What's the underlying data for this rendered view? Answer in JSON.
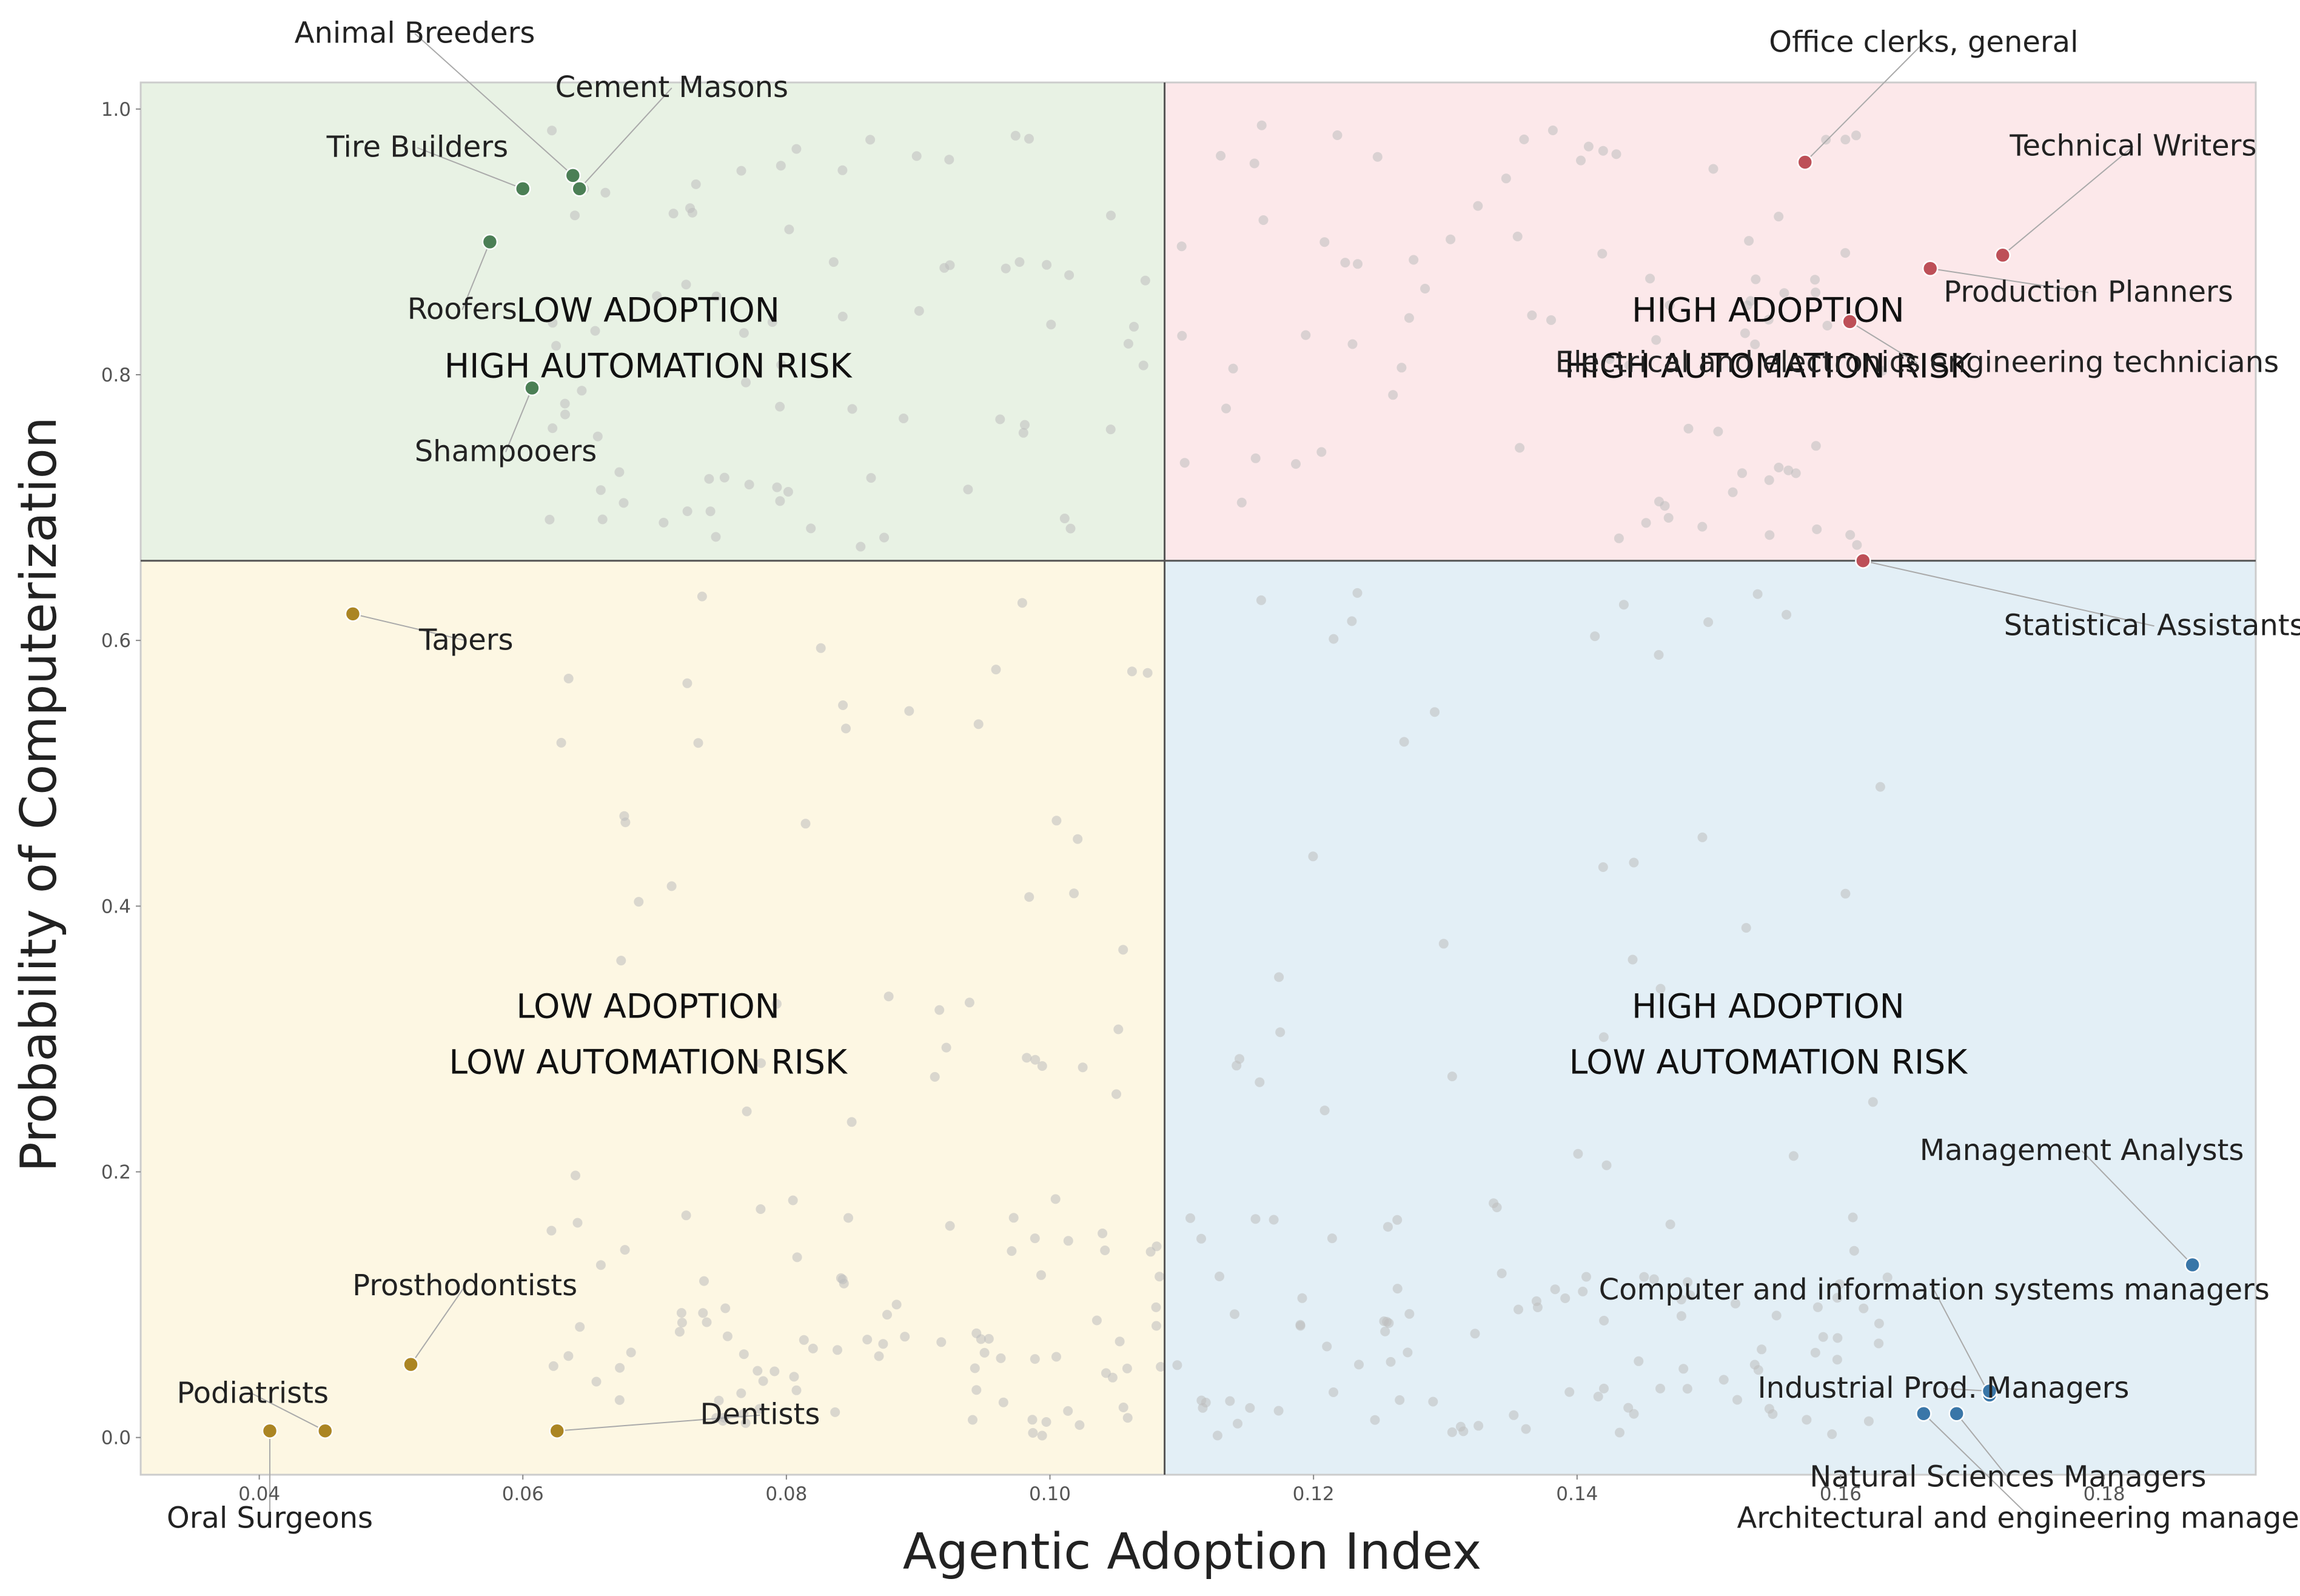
{
  "chart_data": {
    "type": "scatter",
    "xlabel": "Agentic Adoption Index",
    "ylabel": "Probability of Computerization",
    "xlim": [
      0.031,
      0.1915
    ],
    "ylim": [
      -0.028,
      1.02
    ],
    "x_ticks": [
      {
        "value": 0.04,
        "label": "0.04"
      },
      {
        "value": 0.06,
        "label": "0.06"
      },
      {
        "value": 0.08,
        "label": "0.08"
      },
      {
        "value": 0.1,
        "label": "0.10"
      },
      {
        "value": 0.12,
        "label": "0.12"
      },
      {
        "value": 0.14,
        "label": "0.14"
      },
      {
        "value": 0.16,
        "label": "0.16"
      },
      {
        "value": 0.18,
        "label": "0.18"
      }
    ],
    "y_ticks": [
      {
        "value": 0.0,
        "label": "0.0"
      },
      {
        "value": 0.2,
        "label": "0.2"
      },
      {
        "value": 0.4,
        "label": "0.4"
      },
      {
        "value": 0.6,
        "label": "0.6"
      },
      {
        "value": 0.8,
        "label": "0.8"
      },
      {
        "value": 1.0,
        "label": "1.0"
      }
    ],
    "thresholds": {
      "x": 0.1087,
      "y": 0.66
    },
    "grid": false,
    "quadrants": [
      {
        "id": "tl",
        "line1": "LOW ADOPTION",
        "line2": "HIGH AUTOMATION RISK",
        "fill": "#e8f2e4",
        "text_x": 0.0695,
        "y1": 0.84,
        "y2": 0.798
      },
      {
        "id": "tr",
        "line1": "HIGH ADOPTION",
        "line2": "HIGH AUTOMATION RISK",
        "fill": "#fce8ea",
        "text_x": 0.1545,
        "y1": 0.84,
        "y2": 0.798
      },
      {
        "id": "bl",
        "line1": "LOW ADOPTION",
        "line2": "LOW AUTOMATION RISK",
        "fill": "#fdf7e3",
        "text_x": 0.0695,
        "y1": 0.316,
        "y2": 0.274
      },
      {
        "id": "br",
        "line1": "HIGH ADOPTION",
        "line2": "LOW AUTOMATION RISK",
        "fill": "#e3eff6",
        "text_x": 0.1545,
        "y1": 0.316,
        "y2": 0.274
      }
    ],
    "highlight_colors": {
      "tl": "#4b7f55",
      "tr": "#bd5058",
      "bl": "#ab8523",
      "br": "#3976a8"
    },
    "highlighted": [
      {
        "name": "Animal Breeders",
        "x": 0.0638,
        "y": 0.95,
        "q": "tl",
        "lx": 0.0518,
        "ly": 1.05,
        "anchor": "middle"
      },
      {
        "name": "Cement Masons",
        "x": 0.0643,
        "y": 0.94,
        "q": "tl",
        "lx": 0.0713,
        "ly": 1.009,
        "anchor": "middle"
      },
      {
        "name": "Tire Builders",
        "x": 0.06,
        "y": 0.94,
        "q": "tl",
        "lx": 0.052,
        "ly": 0.964,
        "anchor": "middle"
      },
      {
        "name": "Roofers",
        "x": 0.0575,
        "y": 0.9,
        "q": "tl",
        "lx": 0.0554,
        "ly": 0.842,
        "anchor": "middle"
      },
      {
        "name": "Shampooers",
        "x": 0.0607,
        "y": 0.79,
        "q": "tl",
        "lx": 0.0587,
        "ly": 0.735,
        "anchor": "middle"
      },
      {
        "name": "Office clerks, general",
        "x": 0.1573,
        "y": 0.96,
        "q": "tr",
        "lx": 0.1663,
        "ly": 1.043,
        "anchor": "middle"
      },
      {
        "name": "Technical Writers",
        "x": 0.1723,
        "y": 0.89,
        "q": "tr",
        "lx": 0.1822,
        "ly": 0.965,
        "anchor": "middle"
      },
      {
        "name": "Production Planners",
        "x": 0.1668,
        "y": 0.88,
        "q": "tr",
        "lx": 0.1788,
        "ly": 0.855,
        "anchor": "middle"
      },
      {
        "name": "Electrical and electronics engineering technicians",
        "x": 0.1607,
        "y": 0.84,
        "q": "tr",
        "lx": 0.1658,
        "ly": 0.802,
        "anchor": "middle"
      },
      {
        "name": "Statistical Assistants",
        "x": 0.1617,
        "y": 0.66,
        "q": "tr",
        "lx": 0.1838,
        "ly": 0.604,
        "anchor": "middle"
      },
      {
        "name": "Tapers",
        "x": 0.0471,
        "y": 0.62,
        "q": "bl",
        "lx": 0.0557,
        "ly": 0.593,
        "anchor": "middle"
      },
      {
        "name": "Prosthodontists",
        "x": 0.0515,
        "y": 0.055,
        "q": "bl",
        "lx": 0.0556,
        "ly": 0.107,
        "anchor": "middle"
      },
      {
        "name": "Podiatrists",
        "x": 0.045,
        "y": 0.005,
        "q": "bl",
        "lx": 0.0395,
        "ly": 0.026,
        "anchor": "middle"
      },
      {
        "name": "Oral Surgeons",
        "x": 0.0408,
        "y": 0.005,
        "q": "bl",
        "lx": 0.0408,
        "ly": -0.068,
        "anchor": "middle"
      },
      {
        "name": "Dentists",
        "x": 0.0626,
        "y": 0.005,
        "q": "bl",
        "lx": 0.078,
        "ly": 0.01,
        "anchor": "middle"
      },
      {
        "name": "Management Analysts",
        "x": 0.1867,
        "y": 0.13,
        "q": "br",
        "lx": 0.1783,
        "ly": 0.209,
        "anchor": "middle"
      },
      {
        "name": "Computer and information systems managers",
        "x": 0.1713,
        "y": 0.032,
        "q": "br",
        "lx": 0.1671,
        "ly": 0.104,
        "anchor": "middle"
      },
      {
        "name": "Industrial Prod. Managers",
        "x": 0.1713,
        "y": 0.035,
        "q": "br",
        "lx": 0.1678,
        "ly": 0.03,
        "anchor": "middle"
      },
      {
        "name": "Natural Sciences Managers",
        "x": 0.1688,
        "y": 0.018,
        "q": "br",
        "lx": 0.1727,
        "ly": -0.037,
        "anchor": "middle"
      },
      {
        "name": "Architectural and engineering managers",
        "x": 0.1663,
        "y": 0.018,
        "q": "br",
        "lx": 0.1745,
        "ly": -0.068,
        "anchor": "middle"
      }
    ],
    "background_points_count": 420,
    "background_point_color": "#bdbdbd"
  }
}
